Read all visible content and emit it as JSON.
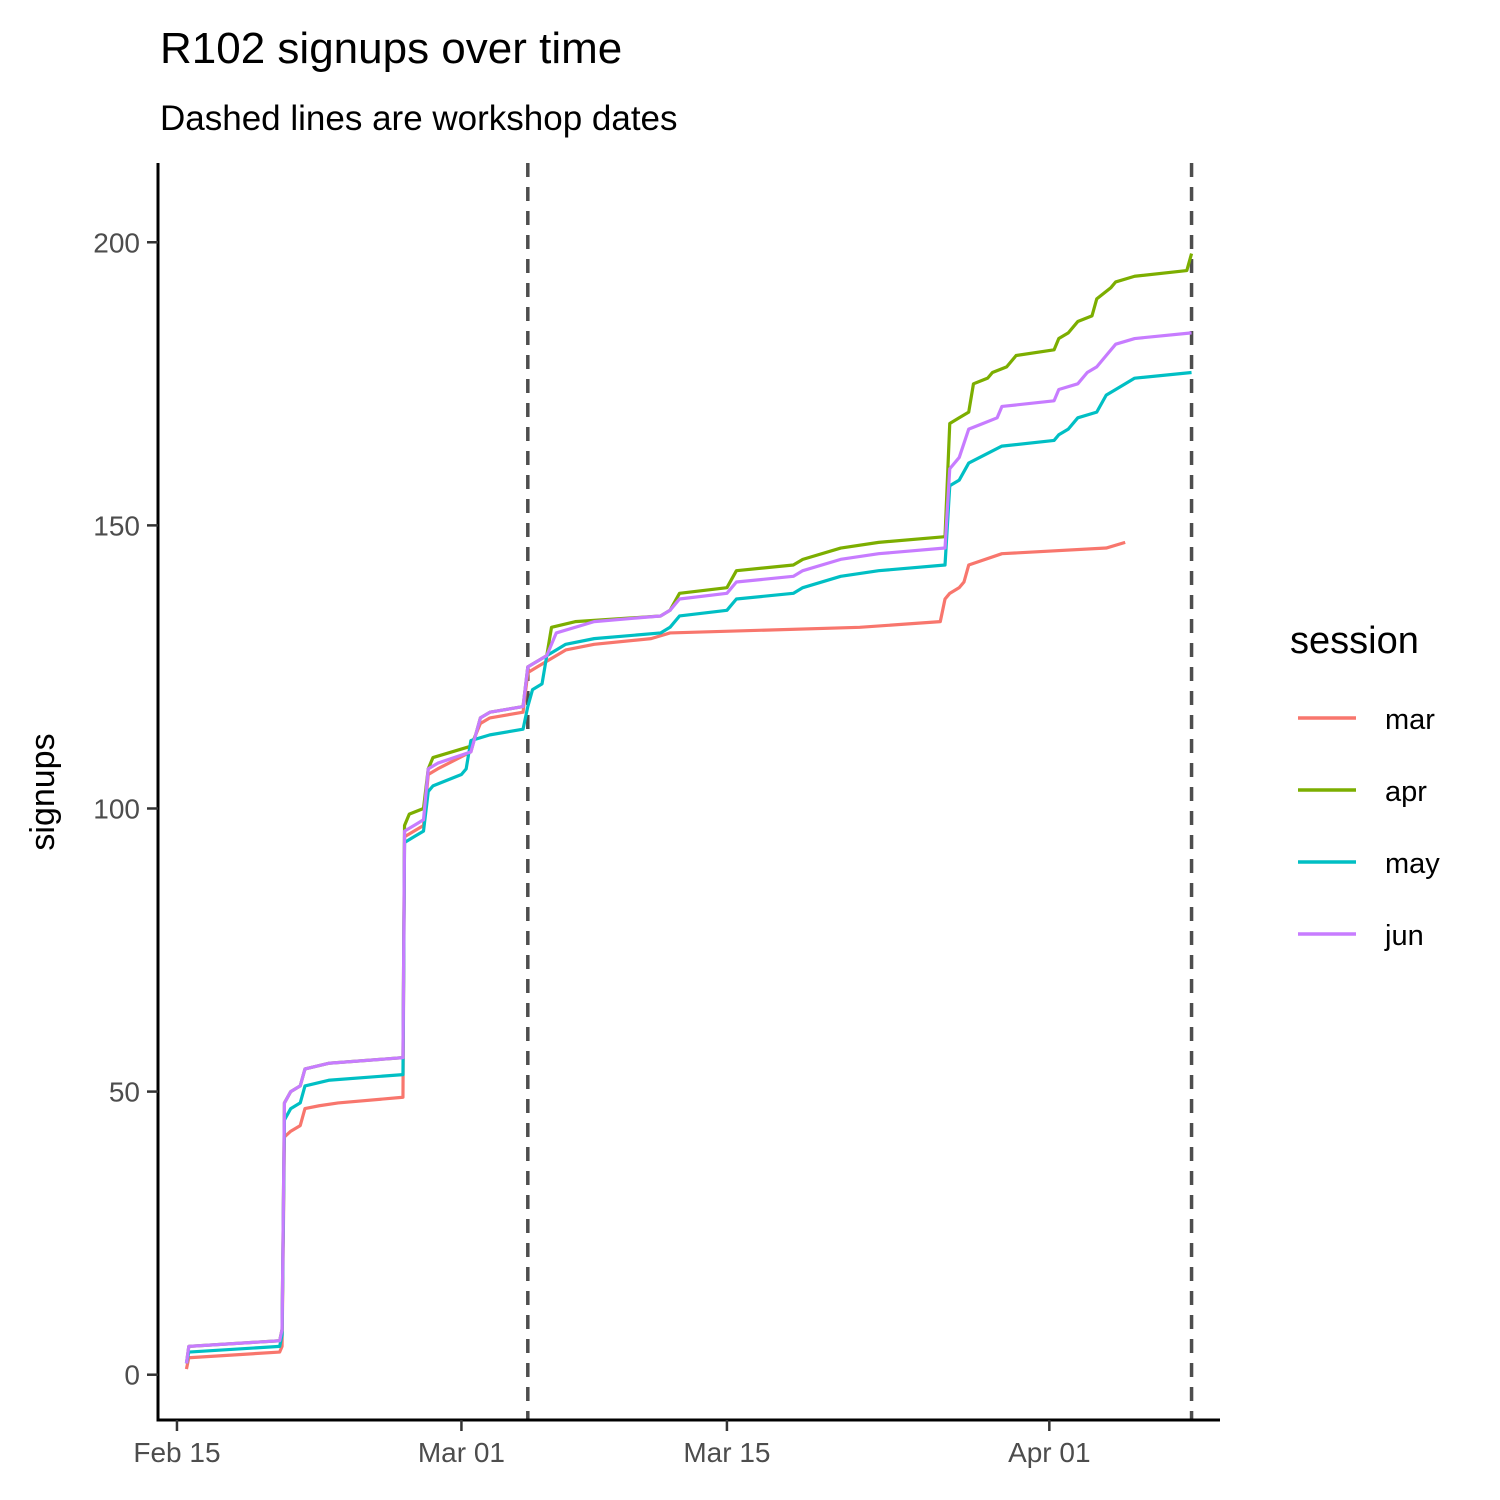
{
  "chart_data": {
    "type": "line",
    "title": "R102 signups over time",
    "subtitle": "Dashed lines are workshop dates",
    "xlabel": "",
    "ylabel": "signups",
    "x_is_date": true,
    "xlim": [
      "2020-02-14",
      "2020-04-10"
    ],
    "ylim": [
      -8,
      214
    ],
    "x_ticks": [
      {
        "value": "2020-02-15",
        "label": "Feb 15"
      },
      {
        "value": "2020-03-01",
        "label": "Mar 01"
      },
      {
        "value": "2020-03-15",
        "label": "Mar 15"
      },
      {
        "value": "2020-04-01",
        "label": "Apr 01"
      }
    ],
    "y_ticks": [
      0,
      50,
      100,
      150,
      200
    ],
    "grid": false,
    "reference_lines": [
      {
        "x": "2020-03-04T12:00",
        "style": "dashed",
        "color": "#4d4d4d"
      },
      {
        "x": "2020-04-08T12:00",
        "style": "dashed",
        "color": "#4d4d4d"
      }
    ],
    "legend": {
      "title": "session",
      "position": "right"
    },
    "series": [
      {
        "name": "mar",
        "color": "#F8766D",
        "points": [
          [
            "2020-02-15T12:00",
            1
          ],
          [
            "2020-02-15T15:00",
            3
          ],
          [
            "2020-02-20T10:00",
            4
          ],
          [
            "2020-02-20T13:00",
            5
          ],
          [
            "2020-02-20T16:00",
            42
          ],
          [
            "2020-02-21T00:00",
            43
          ],
          [
            "2020-02-21T12:00",
            44
          ],
          [
            "2020-02-21T18:00",
            47
          ],
          [
            "2020-02-22T12:00",
            47.5
          ],
          [
            "2020-02-23T12:00",
            48
          ],
          [
            "2020-02-26T22:00",
            49
          ],
          [
            "2020-02-27T00:00",
            95
          ],
          [
            "2020-02-27T12:00",
            96
          ],
          [
            "2020-02-28T00:00",
            97
          ],
          [
            "2020-02-28T06:00",
            106
          ],
          [
            "2020-02-28T18:00",
            107
          ],
          [
            "2020-03-01T12:00",
            110
          ],
          [
            "2020-03-01T18:00",
            113
          ],
          [
            "2020-03-02T00:00",
            115
          ],
          [
            "2020-03-02T12:00",
            116
          ],
          [
            "2020-03-04T06:00",
            117
          ],
          [
            "2020-03-04T12:00",
            124
          ],
          [
            "2020-03-05T00:00",
            125
          ],
          [
            "2020-03-05T12:00",
            126
          ],
          [
            "2020-03-06T00:00",
            127
          ],
          [
            "2020-03-06T12:00",
            128
          ],
          [
            "2020-03-08T00:00",
            129
          ],
          [
            "2020-03-11T00:00",
            130
          ],
          [
            "2020-03-12T00:00",
            131
          ],
          [
            "2020-03-22T00:00",
            132
          ],
          [
            "2020-03-26T06:00",
            133
          ],
          [
            "2020-03-26T12:00",
            137
          ],
          [
            "2020-03-26T18:00",
            138
          ],
          [
            "2020-03-27T06:00",
            139
          ],
          [
            "2020-03-27T12:00",
            140
          ],
          [
            "2020-03-27T18:00",
            143
          ],
          [
            "2020-03-29T12:00",
            145
          ],
          [
            "2020-04-04T00:00",
            146
          ],
          [
            "2020-04-05T00:00",
            147
          ]
        ]
      },
      {
        "name": "apr",
        "color": "#7CAE00",
        "points": [
          [
            "2020-02-15T12:00",
            2
          ],
          [
            "2020-02-15T15:00",
            5
          ],
          [
            "2020-02-20T10:00",
            6
          ],
          [
            "2020-02-20T13:00",
            8
          ],
          [
            "2020-02-20T16:00",
            48
          ],
          [
            "2020-02-21T00:00",
            50
          ],
          [
            "2020-02-21T12:00",
            51
          ],
          [
            "2020-02-21T18:00",
            54
          ],
          [
            "2020-02-23T00:00",
            55
          ],
          [
            "2020-02-26T22:00",
            56
          ],
          [
            "2020-02-27T00:00",
            97
          ],
          [
            "2020-02-27T06:00",
            99
          ],
          [
            "2020-02-28T00:00",
            100
          ],
          [
            "2020-02-28T06:00",
            107
          ],
          [
            "2020-02-28T12:00",
            109
          ],
          [
            "2020-03-01T12:00",
            111
          ],
          [
            "2020-03-01T18:00",
            113
          ],
          [
            "2020-03-02T00:00",
            116
          ],
          [
            "2020-03-02T12:00",
            117
          ],
          [
            "2020-03-04T06:00",
            118
          ],
          [
            "2020-03-04T12:00",
            125
          ],
          [
            "2020-03-05T00:00",
            126
          ],
          [
            "2020-03-05T12:00",
            127
          ],
          [
            "2020-03-05T18:00",
            132
          ],
          [
            "2020-03-07T00:00",
            133
          ],
          [
            "2020-03-11T12:00",
            134
          ],
          [
            "2020-03-12T00:00",
            135
          ],
          [
            "2020-03-12T12:00",
            138
          ],
          [
            "2020-03-15T00:00",
            139
          ],
          [
            "2020-03-15T12:00",
            142
          ],
          [
            "2020-03-18T12:00",
            143
          ],
          [
            "2020-03-19T00:00",
            144
          ],
          [
            "2020-03-21T00:00",
            146
          ],
          [
            "2020-03-23T00:00",
            147
          ],
          [
            "2020-03-26T12:00",
            148
          ],
          [
            "2020-03-26T18:00",
            168
          ],
          [
            "2020-03-27T06:00",
            169
          ],
          [
            "2020-03-27T18:00",
            170
          ],
          [
            "2020-03-28T00:00",
            175
          ],
          [
            "2020-03-28T18:00",
            176
          ],
          [
            "2020-03-29T00:00",
            177
          ],
          [
            "2020-03-29T18:00",
            178
          ],
          [
            "2020-03-30T06:00",
            180
          ],
          [
            "2020-04-01T06:00",
            181
          ],
          [
            "2020-04-01T12:00",
            183
          ],
          [
            "2020-04-02T00:00",
            184
          ],
          [
            "2020-04-02T12:00",
            186
          ],
          [
            "2020-04-03T06:00",
            187
          ],
          [
            "2020-04-03T12:00",
            190
          ],
          [
            "2020-04-04T06:00",
            192
          ],
          [
            "2020-04-04T12:00",
            193
          ],
          [
            "2020-04-05T12:00",
            194
          ],
          [
            "2020-04-08T06:00",
            195
          ],
          [
            "2020-04-08T12:00",
            198
          ]
        ]
      },
      {
        "name": "may",
        "color": "#00BFC4",
        "points": [
          [
            "2020-02-15T12:00",
            2
          ],
          [
            "2020-02-15T15:00",
            4
          ],
          [
            "2020-02-20T10:00",
            5
          ],
          [
            "2020-02-20T13:00",
            7
          ],
          [
            "2020-02-20T16:00",
            45
          ],
          [
            "2020-02-21T00:00",
            47
          ],
          [
            "2020-02-21T12:00",
            48
          ],
          [
            "2020-02-21T18:00",
            51
          ],
          [
            "2020-02-23T00:00",
            52
          ],
          [
            "2020-02-26T22:00",
            53
          ],
          [
            "2020-02-27T00:00",
            94
          ],
          [
            "2020-02-27T12:00",
            95
          ],
          [
            "2020-02-28T00:00",
            96
          ],
          [
            "2020-02-28T06:00",
            103
          ],
          [
            "2020-02-28T12:00",
            104
          ],
          [
            "2020-03-01T00:00",
            106
          ],
          [
            "2020-03-01T06:00",
            107
          ],
          [
            "2020-03-01T12:00",
            112
          ],
          [
            "2020-03-02T12:00",
            113
          ],
          [
            "2020-03-04T06:00",
            114
          ],
          [
            "2020-03-04T12:00",
            118
          ],
          [
            "2020-03-04T18:00",
            121
          ],
          [
            "2020-03-05T06:00",
            122
          ],
          [
            "2020-03-05T12:00",
            127
          ],
          [
            "2020-03-06T00:00",
            128
          ],
          [
            "2020-03-06T12:00",
            129
          ],
          [
            "2020-03-08T00:00",
            130
          ],
          [
            "2020-03-11T12:00",
            131
          ],
          [
            "2020-03-12T00:00",
            132
          ],
          [
            "2020-03-12T12:00",
            134
          ],
          [
            "2020-03-15T00:00",
            135
          ],
          [
            "2020-03-15T12:00",
            137
          ],
          [
            "2020-03-18T12:00",
            138
          ],
          [
            "2020-03-19T00:00",
            139
          ],
          [
            "2020-03-21T00:00",
            141
          ],
          [
            "2020-03-23T00:00",
            142
          ],
          [
            "2020-03-26T12:00",
            143
          ],
          [
            "2020-03-26T18:00",
            157
          ],
          [
            "2020-03-27T06:00",
            158
          ],
          [
            "2020-03-27T18:00",
            161
          ],
          [
            "2020-03-29T12:00",
            164
          ],
          [
            "2020-04-01T06:00",
            165
          ],
          [
            "2020-04-01T12:00",
            166
          ],
          [
            "2020-04-02T00:00",
            167
          ],
          [
            "2020-04-02T12:00",
            169
          ],
          [
            "2020-04-03T12:00",
            170
          ],
          [
            "2020-04-04T00:00",
            173
          ],
          [
            "2020-04-04T12:00",
            174
          ],
          [
            "2020-04-05T12:00",
            176
          ],
          [
            "2020-04-08T12:00",
            177
          ]
        ]
      },
      {
        "name": "jun",
        "color": "#C77CFF",
        "points": [
          [
            "2020-02-15T12:00",
            2
          ],
          [
            "2020-02-15T15:00",
            5
          ],
          [
            "2020-02-20T10:00",
            6
          ],
          [
            "2020-02-20T13:00",
            8
          ],
          [
            "2020-02-20T16:00",
            48
          ],
          [
            "2020-02-21T00:00",
            50
          ],
          [
            "2020-02-21T12:00",
            51
          ],
          [
            "2020-02-21T18:00",
            54
          ],
          [
            "2020-02-23T00:00",
            55
          ],
          [
            "2020-02-26T22:00",
            56
          ],
          [
            "2020-02-27T00:00",
            96
          ],
          [
            "2020-02-27T12:00",
            97
          ],
          [
            "2020-02-28T00:00",
            98
          ],
          [
            "2020-02-28T06:00",
            107
          ],
          [
            "2020-02-28T18:00",
            108
          ],
          [
            "2020-03-01T12:00",
            110
          ],
          [
            "2020-03-01T18:00",
            113
          ],
          [
            "2020-03-02T00:00",
            116
          ],
          [
            "2020-03-02T12:00",
            117
          ],
          [
            "2020-03-04T06:00",
            118
          ],
          [
            "2020-03-04T12:00",
            125
          ],
          [
            "2020-03-05T00:00",
            126
          ],
          [
            "2020-03-05T12:00",
            127
          ],
          [
            "2020-03-06T00:00",
            131
          ],
          [
            "2020-03-08T00:00",
            133
          ],
          [
            "2020-03-11T12:00",
            134
          ],
          [
            "2020-03-12T00:00",
            135
          ],
          [
            "2020-03-12T12:00",
            137
          ],
          [
            "2020-03-15T00:00",
            138
          ],
          [
            "2020-03-15T12:00",
            140
          ],
          [
            "2020-03-18T12:00",
            141
          ],
          [
            "2020-03-19T00:00",
            142
          ],
          [
            "2020-03-21T00:00",
            144
          ],
          [
            "2020-03-23T00:00",
            145
          ],
          [
            "2020-03-26T12:00",
            146
          ],
          [
            "2020-03-26T18:00",
            160
          ],
          [
            "2020-03-27T06:00",
            162
          ],
          [
            "2020-03-27T18:00",
            167
          ],
          [
            "2020-03-28T12:00",
            168
          ],
          [
            "2020-03-29T06:00",
            169
          ],
          [
            "2020-03-29T12:00",
            171
          ],
          [
            "2020-04-01T06:00",
            172
          ],
          [
            "2020-04-01T12:00",
            174
          ],
          [
            "2020-04-02T12:00",
            175
          ],
          [
            "2020-04-03T00:00",
            177
          ],
          [
            "2020-04-03T12:00",
            178
          ],
          [
            "2020-04-04T00:00",
            180
          ],
          [
            "2020-04-04T12:00",
            182
          ],
          [
            "2020-04-05T12:00",
            183
          ],
          [
            "2020-04-08T12:00",
            184
          ]
        ]
      }
    ]
  }
}
